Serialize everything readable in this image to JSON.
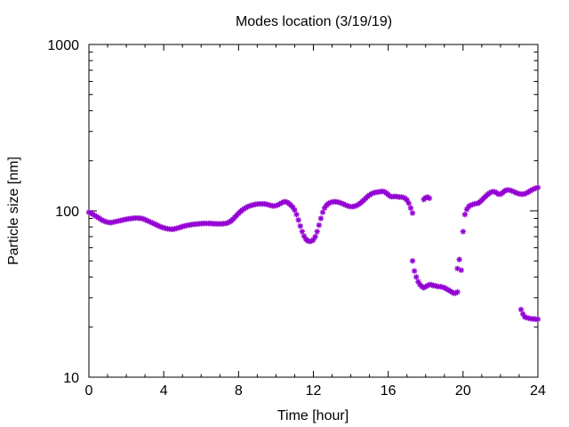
{
  "chart_data": {
    "type": "scatter",
    "title": "Modes location (3/19/19)",
    "xlabel": "Time [hour]",
    "ylabel": "Particle size [nm]",
    "xlim": [
      0,
      24
    ],
    "ylim": [
      10,
      1000
    ],
    "yscale": "log",
    "x_ticks": [
      0,
      4,
      8,
      12,
      16,
      20,
      24
    ],
    "y_ticks": [
      10,
      100,
      1000
    ],
    "grid": false,
    "legend": "none",
    "marker": "star",
    "color": "#9400d3",
    "series": [
      {
        "points": [
          [
            0.0,
            98
          ],
          [
            0.1,
            97
          ],
          [
            0.2,
            95.5
          ],
          [
            0.3,
            94
          ],
          [
            0.4,
            92.5
          ],
          [
            0.5,
            91
          ],
          [
            0.6,
            89.5
          ],
          [
            0.7,
            88
          ],
          [
            0.8,
            87
          ],
          [
            0.9,
            86
          ],
          [
            1.0,
            85.5
          ],
          [
            1.1,
            85
          ],
          [
            1.2,
            85
          ],
          [
            1.3,
            85.5
          ],
          [
            1.4,
            86
          ],
          [
            1.5,
            86.5
          ],
          [
            1.6,
            87
          ],
          [
            1.7,
            87.5
          ],
          [
            1.8,
            88
          ],
          [
            1.9,
            88.5
          ],
          [
            2.0,
            89
          ],
          [
            2.1,
            89.5
          ],
          [
            2.2,
            89.7
          ],
          [
            2.3,
            90
          ],
          [
            2.4,
            90.3
          ],
          [
            2.5,
            90.5
          ],
          [
            2.6,
            90.5
          ],
          [
            2.7,
            90.3
          ],
          [
            2.8,
            90
          ],
          [
            2.9,
            89.5
          ],
          [
            3.0,
            88.5
          ],
          [
            3.1,
            87.5
          ],
          [
            3.2,
            86.5
          ],
          [
            3.3,
            85.5
          ],
          [
            3.4,
            84.5
          ],
          [
            3.5,
            83.5
          ],
          [
            3.6,
            82.5
          ],
          [
            3.7,
            81.5
          ],
          [
            3.8,
            80.5
          ],
          [
            3.9,
            79.7
          ],
          [
            4.0,
            79
          ],
          [
            4.1,
            78.5
          ],
          [
            4.2,
            78
          ],
          [
            4.3,
            77.7
          ],
          [
            4.4,
            77.5
          ],
          [
            4.5,
            77.5
          ],
          [
            4.6,
            78
          ],
          [
            4.7,
            78.5
          ],
          [
            4.8,
            79
          ],
          [
            4.9,
            79.7
          ],
          [
            5.0,
            80.5
          ],
          [
            5.1,
            81
          ],
          [
            5.2,
            81.5
          ],
          [
            5.3,
            82
          ],
          [
            5.4,
            82.3
          ],
          [
            5.5,
            82.7
          ],
          [
            5.6,
            83
          ],
          [
            5.7,
            83.2
          ],
          [
            5.8,
            83.4
          ],
          [
            5.9,
            83.6
          ],
          [
            6.0,
            83.8
          ],
          [
            6.1,
            84
          ],
          [
            6.2,
            84
          ],
          [
            6.3,
            84
          ],
          [
            6.4,
            84
          ],
          [
            6.5,
            84
          ],
          [
            6.6,
            83.8
          ],
          [
            6.7,
            83.6
          ],
          [
            6.8,
            83.5
          ],
          [
            6.9,
            83.5
          ],
          [
            7.0,
            83.5
          ],
          [
            7.1,
            83.5
          ],
          [
            7.2,
            83.7
          ],
          [
            7.3,
            84
          ],
          [
            7.4,
            84.5
          ],
          [
            7.5,
            85.5
          ],
          [
            7.6,
            87
          ],
          [
            7.7,
            89
          ],
          [
            7.8,
            91.5
          ],
          [
            7.9,
            94
          ],
          [
            8.0,
            96.5
          ],
          [
            8.1,
            99
          ],
          [
            8.2,
            101
          ],
          [
            8.3,
            103
          ],
          [
            8.4,
            104.5
          ],
          [
            8.5,
            106
          ],
          [
            8.6,
            107
          ],
          [
            8.7,
            108
          ],
          [
            8.8,
            108.7
          ],
          [
            8.9,
            109.3
          ],
          [
            9.0,
            109.8
          ],
          [
            9.1,
            110
          ],
          [
            9.2,
            110
          ],
          [
            9.3,
            110
          ],
          [
            9.4,
            110
          ],
          [
            9.5,
            109.5
          ],
          [
            9.6,
            108.7
          ],
          [
            9.7,
            107.8
          ],
          [
            9.8,
            107.2
          ],
          [
            9.9,
            107
          ],
          [
            10.0,
            107.5
          ],
          [
            10.1,
            108.5
          ],
          [
            10.2,
            110
          ],
          [
            10.3,
            111.5
          ],
          [
            10.4,
            113
          ],
          [
            10.5,
            113.5
          ],
          [
            10.6,
            112.5
          ],
          [
            10.7,
            110.5
          ],
          [
            10.8,
            108
          ],
          [
            10.9,
            105
          ],
          [
            11.0,
            101
          ],
          [
            11.1,
            95
          ],
          [
            11.2,
            88
          ],
          [
            11.3,
            81
          ],
          [
            11.4,
            75
          ],
          [
            11.5,
            70.5
          ],
          [
            11.6,
            67.5
          ],
          [
            11.7,
            66
          ],
          [
            11.8,
            65.5
          ],
          [
            11.9,
            65.8
          ],
          [
            12.0,
            67
          ],
          [
            12.1,
            70
          ],
          [
            12.2,
            75
          ],
          [
            12.3,
            82
          ],
          [
            12.4,
            90
          ],
          [
            12.5,
            98
          ],
          [
            12.6,
            104
          ],
          [
            12.7,
            108
          ],
          [
            12.8,
            110.5
          ],
          [
            12.9,
            112
          ],
          [
            13.0,
            113
          ],
          [
            13.1,
            113.5
          ],
          [
            13.2,
            113.5
          ],
          [
            13.3,
            113
          ],
          [
            13.4,
            112
          ],
          [
            13.5,
            111
          ],
          [
            13.6,
            110
          ],
          [
            13.7,
            108.5
          ],
          [
            13.8,
            107.5
          ],
          [
            13.9,
            106.5
          ],
          [
            14.0,
            106
          ],
          [
            14.1,
            106
          ],
          [
            14.2,
            106.5
          ],
          [
            14.3,
            107.5
          ],
          [
            14.4,
            109
          ],
          [
            14.5,
            111
          ],
          [
            14.6,
            113.5
          ],
          [
            14.7,
            116
          ],
          [
            14.8,
            119
          ],
          [
            14.9,
            122
          ],
          [
            15.0,
            124.5
          ],
          [
            15.1,
            126.5
          ],
          [
            15.2,
            128
          ],
          [
            15.3,
            129
          ],
          [
            15.4,
            129.5
          ],
          [
            15.5,
            130
          ],
          [
            15.6,
            130.5
          ],
          [
            15.7,
            131
          ],
          [
            15.8,
            130
          ],
          [
            15.9,
            128
          ],
          [
            16.0,
            125
          ],
          [
            16.1,
            122.5
          ],
          [
            16.2,
            121.5
          ],
          [
            16.3,
            122
          ],
          [
            16.4,
            122
          ],
          [
            16.5,
            121.5
          ],
          [
            16.6,
            121
          ],
          [
            16.7,
            121
          ],
          [
            16.8,
            120.5
          ],
          [
            16.9,
            119
          ],
          [
            17.0,
            116
          ],
          [
            17.1,
            111
          ],
          [
            17.2,
            104
          ],
          [
            17.3,
            97
          ],
          [
            17.3,
            50
          ],
          [
            17.4,
            43.5
          ],
          [
            17.5,
            40
          ],
          [
            17.6,
            37.5
          ],
          [
            17.7,
            36
          ],
          [
            17.8,
            35
          ],
          [
            17.9,
            34.5
          ],
          [
            18.0,
            35
          ],
          [
            18.1,
            35.5
          ],
          [
            18.2,
            36
          ],
          [
            18.3,
            36
          ],
          [
            18.4,
            35.5
          ],
          [
            18.5,
            35.5
          ],
          [
            18.6,
            35.2
          ],
          [
            18.7,
            35
          ],
          [
            18.8,
            35
          ],
          [
            18.9,
            34.8
          ],
          [
            19.0,
            34.5
          ],
          [
            19.1,
            34
          ],
          [
            19.2,
            33.5
          ],
          [
            19.3,
            33
          ],
          [
            19.4,
            32.5
          ],
          [
            19.5,
            32
          ],
          [
            19.6,
            32
          ],
          [
            19.7,
            32.5
          ],
          [
            17.9,
            117
          ],
          [
            18.0,
            120
          ],
          [
            18.1,
            121
          ],
          [
            18.2,
            119
          ],
          [
            19.7,
            45
          ],
          [
            19.8,
            51
          ],
          [
            19.9,
            44
          ],
          [
            20.0,
            75
          ],
          [
            20.1,
            95
          ],
          [
            20.2,
            102
          ],
          [
            20.3,
            106
          ],
          [
            20.4,
            108
          ],
          [
            20.5,
            109
          ],
          [
            20.6,
            110
          ],
          [
            20.7,
            110.5
          ],
          [
            20.8,
            111
          ],
          [
            20.9,
            113
          ],
          [
            21.0,
            116
          ],
          [
            21.1,
            119
          ],
          [
            21.2,
            122
          ],
          [
            21.3,
            125
          ],
          [
            21.4,
            127.5
          ],
          [
            21.5,
            129.5
          ],
          [
            21.6,
            130.5
          ],
          [
            21.7,
            130
          ],
          [
            21.8,
            128
          ],
          [
            21.9,
            126
          ],
          [
            22.0,
            126
          ],
          [
            22.1,
            128
          ],
          [
            22.2,
            131
          ],
          [
            22.3,
            133
          ],
          [
            22.4,
            133.5
          ],
          [
            22.5,
            133
          ],
          [
            22.6,
            132
          ],
          [
            22.7,
            130.5
          ],
          [
            22.8,
            129
          ],
          [
            22.9,
            127.5
          ],
          [
            23.0,
            126.5
          ],
          [
            23.1,
            126
          ],
          [
            23.2,
            126
          ],
          [
            23.3,
            126.5
          ],
          [
            23.4,
            128
          ],
          [
            23.5,
            130
          ],
          [
            23.6,
            132
          ],
          [
            23.7,
            134
          ],
          [
            23.8,
            135.5
          ],
          [
            23.9,
            137
          ],
          [
            24.0,
            138
          ],
          [
            23.1,
            25.5
          ],
          [
            23.2,
            24
          ],
          [
            23.3,
            23
          ],
          [
            23.4,
            22.8
          ],
          [
            23.5,
            22.6
          ],
          [
            23.6,
            22.5
          ],
          [
            23.7,
            22.4
          ],
          [
            23.8,
            22.4
          ],
          [
            23.9,
            22.3
          ],
          [
            24.0,
            22.3
          ]
        ]
      }
    ]
  }
}
